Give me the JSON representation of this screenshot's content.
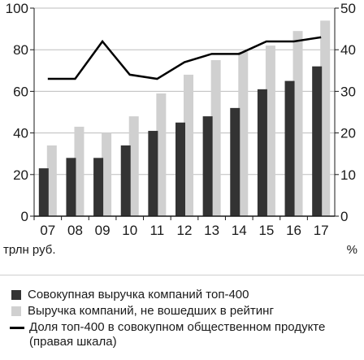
{
  "chart_data": {
    "type": "bar",
    "categories": [
      "07",
      "08",
      "09",
      "10",
      "11",
      "12",
      "13",
      "14",
      "15",
      "16",
      "17"
    ],
    "series": [
      {
        "name": "Совокупная выручка компаний топ-400",
        "kind": "bar",
        "axis": "left",
        "color": "#333333",
        "values": [
          23,
          28,
          28,
          34,
          41,
          45,
          48,
          52,
          61,
          65,
          72
        ]
      },
      {
        "name": "Выручка компаний, не вошедших в рейтинг",
        "kind": "bar",
        "axis": "left",
        "color": "#d0d0d0",
        "values": [
          34,
          43,
          40,
          48,
          59,
          68,
          75,
          79,
          82,
          89,
          94
        ]
      },
      {
        "name": "Доля топ-400 в совокупном общественном продукте (правая шкала)",
        "kind": "line",
        "axis": "right",
        "color": "#000000",
        "values": [
          33,
          33,
          42,
          34,
          33,
          37,
          39,
          39,
          42,
          42,
          43
        ]
      }
    ],
    "left_axis": {
      "label": "трлн руб.",
      "ylim": [
        0,
        100
      ],
      "ticks": [
        "0",
        "20",
        "40",
        "60",
        "80",
        "100"
      ]
    },
    "right_axis": {
      "label": "%",
      "ylim": [
        0,
        50
      ],
      "ticks": [
        "0",
        "10",
        "20",
        "30",
        "40",
        "50"
      ]
    },
    "grid": true,
    "legend_position": "bottom"
  }
}
